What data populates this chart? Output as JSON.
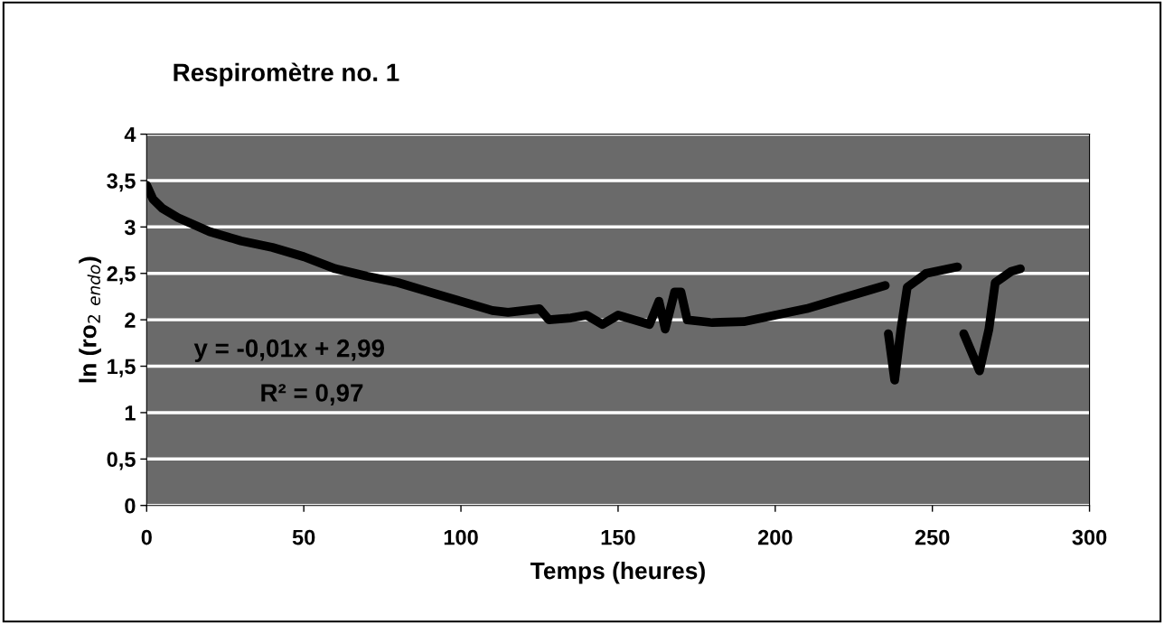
{
  "chart_data": {
    "type": "line",
    "title": "Respiromètre no. 1",
    "xlabel": "Temps (heures)",
    "ylabel": "ln (ro$_{2}$ $_{endo}$)",
    "annotations": [
      "y = -0,01x + 2,99",
      "R² = 0,97"
    ],
    "xlim": [
      0,
      300
    ],
    "xticks": [
      0,
      50,
      100,
      150,
      200,
      250,
      300
    ],
    "ylim": [
      0,
      4
    ],
    "yticks": [
      0,
      {
        "value": 0.5,
        "label": "0,5"
      },
      1,
      {
        "value": 1.5,
        "label": "1,5"
      },
      2,
      {
        "value": 2.5,
        "label": "2,5"
      },
      3,
      {
        "value": 3.5,
        "label": "3,5"
      },
      4
    ],
    "grid": "y",
    "marker": "none",
    "line_style": "solid",
    "series": [
      {
        "color": "#000000",
        "x": [
          0,
          2,
          5,
          10,
          20,
          30,
          40,
          50,
          60,
          70,
          80,
          90,
          100,
          110,
          115,
          120,
          125,
          128,
          135,
          140,
          145,
          150,
          155,
          160,
          163,
          165,
          168,
          170,
          172,
          180,
          190,
          200,
          210,
          220,
          230,
          235,
          235.5,
          236,
          238,
          240,
          242,
          248,
          258,
          259,
          260,
          265,
          268,
          270,
          275,
          278
        ],
        "values": [
          3.45,
          3.3,
          3.2,
          3.1,
          2.95,
          2.85,
          2.78,
          2.68,
          2.55,
          2.47,
          2.4,
          2.3,
          2.2,
          2.1,
          2.08,
          2.1,
          2.12,
          2.0,
          2.02,
          2.05,
          1.95,
          2.05,
          2.0,
          1.95,
          2.2,
          1.9,
          2.3,
          2.3,
          2.0,
          1.97,
          1.98,
          2.05,
          2.12,
          2.22,
          2.32,
          2.37,
          null,
          1.85,
          1.35,
          1.9,
          2.35,
          2.5,
          2.57,
          null,
          1.85,
          1.45,
          1.9,
          2.4,
          2.52,
          2.55
        ]
      }
    ]
  }
}
